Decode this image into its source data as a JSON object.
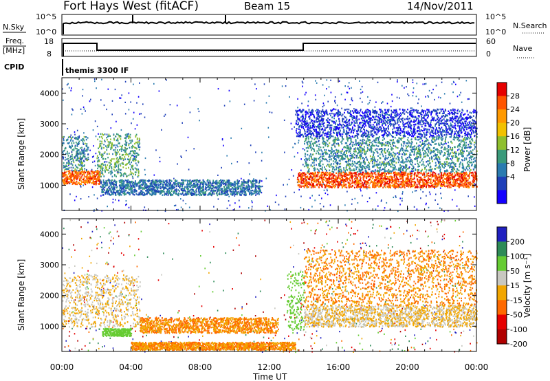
{
  "header": {
    "station": "Fort Hays West (fitACF)",
    "beam": "Beam 15",
    "date": "14/Nov/2011"
  },
  "top_panels": {
    "nsky_label": "N.Sky",
    "nsearch_label": "N.Search",
    "count_ticks_left": [
      "10^5",
      "10^0"
    ],
    "count_ticks_right": [
      "10^5",
      "10^0"
    ],
    "freq_label": "Freq.",
    "freq_unit": "[MHz]",
    "freq_ticks": [
      "18",
      "8"
    ],
    "nave_label": "Nave",
    "nave_ticks": [
      "60",
      "0"
    ],
    "cpid_label": "CPID",
    "cpid_value": "themis 3300 IF"
  },
  "chart_data": [
    {
      "type": "heatmap",
      "name": "power",
      "ylabel": "Slant Range [km]",
      "xlabel": "",
      "x_ticks": [
        "00:00",
        "04:00",
        "08:00",
        "12:00",
        "16:00",
        "20:00",
        "00:00"
      ],
      "xlim_hours": [
        0,
        24
      ],
      "ylim_km": [
        180,
        4500
      ],
      "y_ticks": [
        1000,
        2000,
        3000,
        4000
      ],
      "colorbar": {
        "label": "Power [dB]",
        "ticks": [
          "28",
          "24",
          "20",
          "16",
          "12",
          "8",
          "4"
        ],
        "colors": [
          "#e60000",
          "#ff5500",
          "#ff9900",
          "#f2c100",
          "#8fbf2e",
          "#3a9a7a",
          "#2a7bb0",
          "#1e3fb8",
          "#1400ff"
        ]
      },
      "features": [
        {
          "from_h": 0.0,
          "to_h": 2.2,
          "range_km": [
            1050,
            1500
          ],
          "level_db": 26
        },
        {
          "from_h": 0.0,
          "to_h": 1.5,
          "range_km": [
            1500,
            2600
          ],
          "level_db": 12
        },
        {
          "from_h": 2.0,
          "to_h": 4.5,
          "range_km": [
            1300,
            2700
          ],
          "level_db": 14
        },
        {
          "from_h": 2.2,
          "to_h": 11.5,
          "range_km": [
            700,
            1200
          ],
          "level_db": 10
        },
        {
          "from_h": 13.6,
          "to_h": 24.0,
          "range_km": [
            950,
            1450
          ],
          "level_db": 27
        },
        {
          "from_h": 14.0,
          "to_h": 24.0,
          "range_km": [
            1450,
            2600
          ],
          "level_db": 12
        },
        {
          "from_h": 13.5,
          "to_h": 24.0,
          "range_km": [
            2600,
            3500
          ],
          "level_db": 6
        }
      ]
    },
    {
      "type": "heatmap",
      "name": "velocity",
      "ylabel": "Slant Range [km]",
      "xlabel": "Time UT",
      "x_ticks": [
        "00:00",
        "04:00",
        "08:00",
        "12:00",
        "16:00",
        "20:00",
        "00:00"
      ],
      "xlim_hours": [
        0,
        24
      ],
      "ylim_km": [
        180,
        4500
      ],
      "y_ticks": [
        1000,
        2000,
        3000,
        4000
      ],
      "colorbar": {
        "label": "Velocity [m s⁻¹]",
        "ticks": [
          "200",
          "100",
          "50",
          "15",
          "-15",
          "-50",
          "-100",
          "-200"
        ],
        "colors": [
          "#2020c0",
          "#2e8b57",
          "#66cc33",
          "#c8c8c0",
          "#f2a600",
          "#ff6a00",
          "#e60000",
          "#b00000"
        ]
      },
      "features": [
        {
          "from_h": 0.0,
          "to_h": 4.5,
          "range_km": [
            1000,
            2700
          ],
          "level_ms": 0
        },
        {
          "from_h": 2.3,
          "to_h": 4.0,
          "range_km": [
            700,
            950
          ],
          "level_ms": 50
        },
        {
          "from_h": 4.5,
          "to_h": 12.5,
          "range_km": [
            800,
            1300
          ],
          "level_ms": -30
        },
        {
          "from_h": 4.0,
          "to_h": 13.5,
          "range_km": [
            250,
            500
          ],
          "level_ms": -30
        },
        {
          "from_h": 13.0,
          "to_h": 14.0,
          "range_km": [
            900,
            2800
          ],
          "level_ms": 50
        },
        {
          "from_h": 14.0,
          "to_h": 24.0,
          "range_km": [
            1000,
            1700
          ],
          "level_ms": 0
        },
        {
          "from_h": 14.0,
          "to_h": 24.0,
          "range_km": [
            1700,
            3500
          ],
          "level_ms": -30
        }
      ]
    }
  ]
}
